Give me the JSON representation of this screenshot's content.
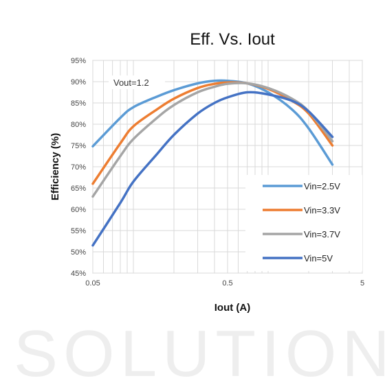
{
  "watermark": "SOLUTIONS",
  "chart_data": {
    "type": "line",
    "title": "Eff. Vs. Iout",
    "xlabel": "Iout (A)",
    "ylabel": "Efficiency (%)",
    "x_scale": "log",
    "xlim": [
      0.05,
      5
    ],
    "ylim": [
      45,
      95
    ],
    "x_tick_labels": [
      "0.05",
      "0.5",
      "5"
    ],
    "y_tick_labels": [
      "45%",
      "50%",
      "55%",
      "60%",
      "65%",
      "70%",
      "75%",
      "80%",
      "85%",
      "90%",
      "95%"
    ],
    "grid": true,
    "legend_position": "bottom-right",
    "annotation": "Vout=1.2",
    "series": [
      {
        "name": "Vin=2.5V",
        "color": "#5B9BD5",
        "x": [
          0.05,
          0.08,
          0.1,
          0.15,
          0.2,
          0.3,
          0.4,
          0.5,
          0.7,
          1.0,
          1.5,
          2.0,
          3.0
        ],
        "y": [
          74.8,
          81.5,
          84.0,
          86.5,
          88.0,
          89.6,
          90.2,
          90.2,
          89.6,
          87.5,
          83.5,
          79.0,
          70.5
        ]
      },
      {
        "name": "Vin=3.3V",
        "color": "#ED7D31",
        "x": [
          0.05,
          0.08,
          0.1,
          0.15,
          0.2,
          0.3,
          0.4,
          0.5,
          0.7,
          1.0,
          1.5,
          2.0,
          3.0
        ],
        "y": [
          66.0,
          75.5,
          79.5,
          83.5,
          86.0,
          88.5,
          89.5,
          89.8,
          89.6,
          88.3,
          85.5,
          82.5,
          75.0
        ]
      },
      {
        "name": "Vin=3.7V",
        "color": "#A5A5A5",
        "x": [
          0.05,
          0.08,
          0.1,
          0.15,
          0.2,
          0.3,
          0.4,
          0.5,
          0.7,
          1.0,
          1.5,
          2.0,
          3.0
        ],
        "y": [
          63.0,
          72.5,
          76.5,
          81.5,
          84.5,
          87.5,
          88.8,
          89.5,
          89.6,
          88.5,
          86.0,
          83.0,
          76.0
        ]
      },
      {
        "name": "Vin=5V",
        "color": "#4472C4",
        "x": [
          0.05,
          0.08,
          0.1,
          0.15,
          0.2,
          0.3,
          0.4,
          0.5,
          0.7,
          1.0,
          1.5,
          2.0,
          3.0
        ],
        "y": [
          51.5,
          61.5,
          66.5,
          73.0,
          77.5,
          82.5,
          85.0,
          86.3,
          87.5,
          87.0,
          85.5,
          83.0,
          77.0
        ]
      }
    ]
  }
}
